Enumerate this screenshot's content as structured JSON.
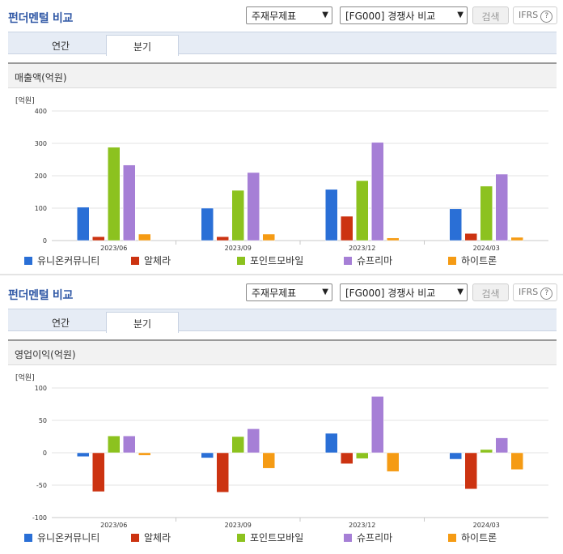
{
  "header": {
    "title": "펀더멘털 비교",
    "select_report": "주재무제표",
    "select_compare": "[FG000] 경쟁사 비교",
    "search_label": "검색",
    "ifrs_label": "IFRS",
    "ifrs_help": "?"
  },
  "tabs": [
    "연간",
    "분기"
  ],
  "colors": {
    "유니온커뮤니티": "#2a6fd6",
    "알체라": "#cc3311",
    "포인트모바일": "#8cc21f",
    "슈프리마": "#a67fd6",
    "하이트론": "#f59b14",
    "accent": "#3159a6"
  },
  "chart_data": [
    {
      "type": "bar",
      "title": "매출액(억원)",
      "unit": "[억원]",
      "categories": [
        "2023/06",
        "2023/09",
        "2023/12",
        "2024/03"
      ],
      "ylim": [
        0,
        400
      ],
      "yticks": [
        0,
        100,
        200,
        300,
        400
      ],
      "grid": true,
      "legend": "bottom",
      "series": [
        {
          "name": "유니온커뮤니티",
          "values": [
            103,
            100,
            158,
            98
          ]
        },
        {
          "name": "알체라",
          "values": [
            12,
            12,
            75,
            22
          ]
        },
        {
          "name": "포인트모바일",
          "values": [
            288,
            155,
            185,
            168
          ]
        },
        {
          "name": "슈프리마",
          "values": [
            233,
            210,
            303,
            205
          ]
        },
        {
          "name": "하이트론",
          "values": [
            20,
            20,
            8,
            10
          ]
        }
      ]
    },
    {
      "type": "bar",
      "title": "영업이익(억원)",
      "unit": "[억원]",
      "categories": [
        "2023/06",
        "2023/09",
        "2023/12",
        "2024/03"
      ],
      "ylim": [
        -100,
        100
      ],
      "yticks": [
        -100,
        -50,
        0,
        50,
        100
      ],
      "grid": true,
      "legend": "bottom",
      "series": [
        {
          "name": "유니온커뮤니티",
          "values": [
            -6,
            -8,
            30,
            -10
          ]
        },
        {
          "name": "알체라",
          "values": [
            -60,
            -61,
            -17,
            -56
          ]
        },
        {
          "name": "포인트모바일",
          "values": [
            26,
            25,
            -9,
            5
          ]
        },
        {
          "name": "슈프리마",
          "values": [
            26,
            37,
            87,
            23
          ]
        },
        {
          "name": "하이트론",
          "values": [
            -4,
            -24,
            -29,
            -26
          ]
        }
      ]
    }
  ]
}
